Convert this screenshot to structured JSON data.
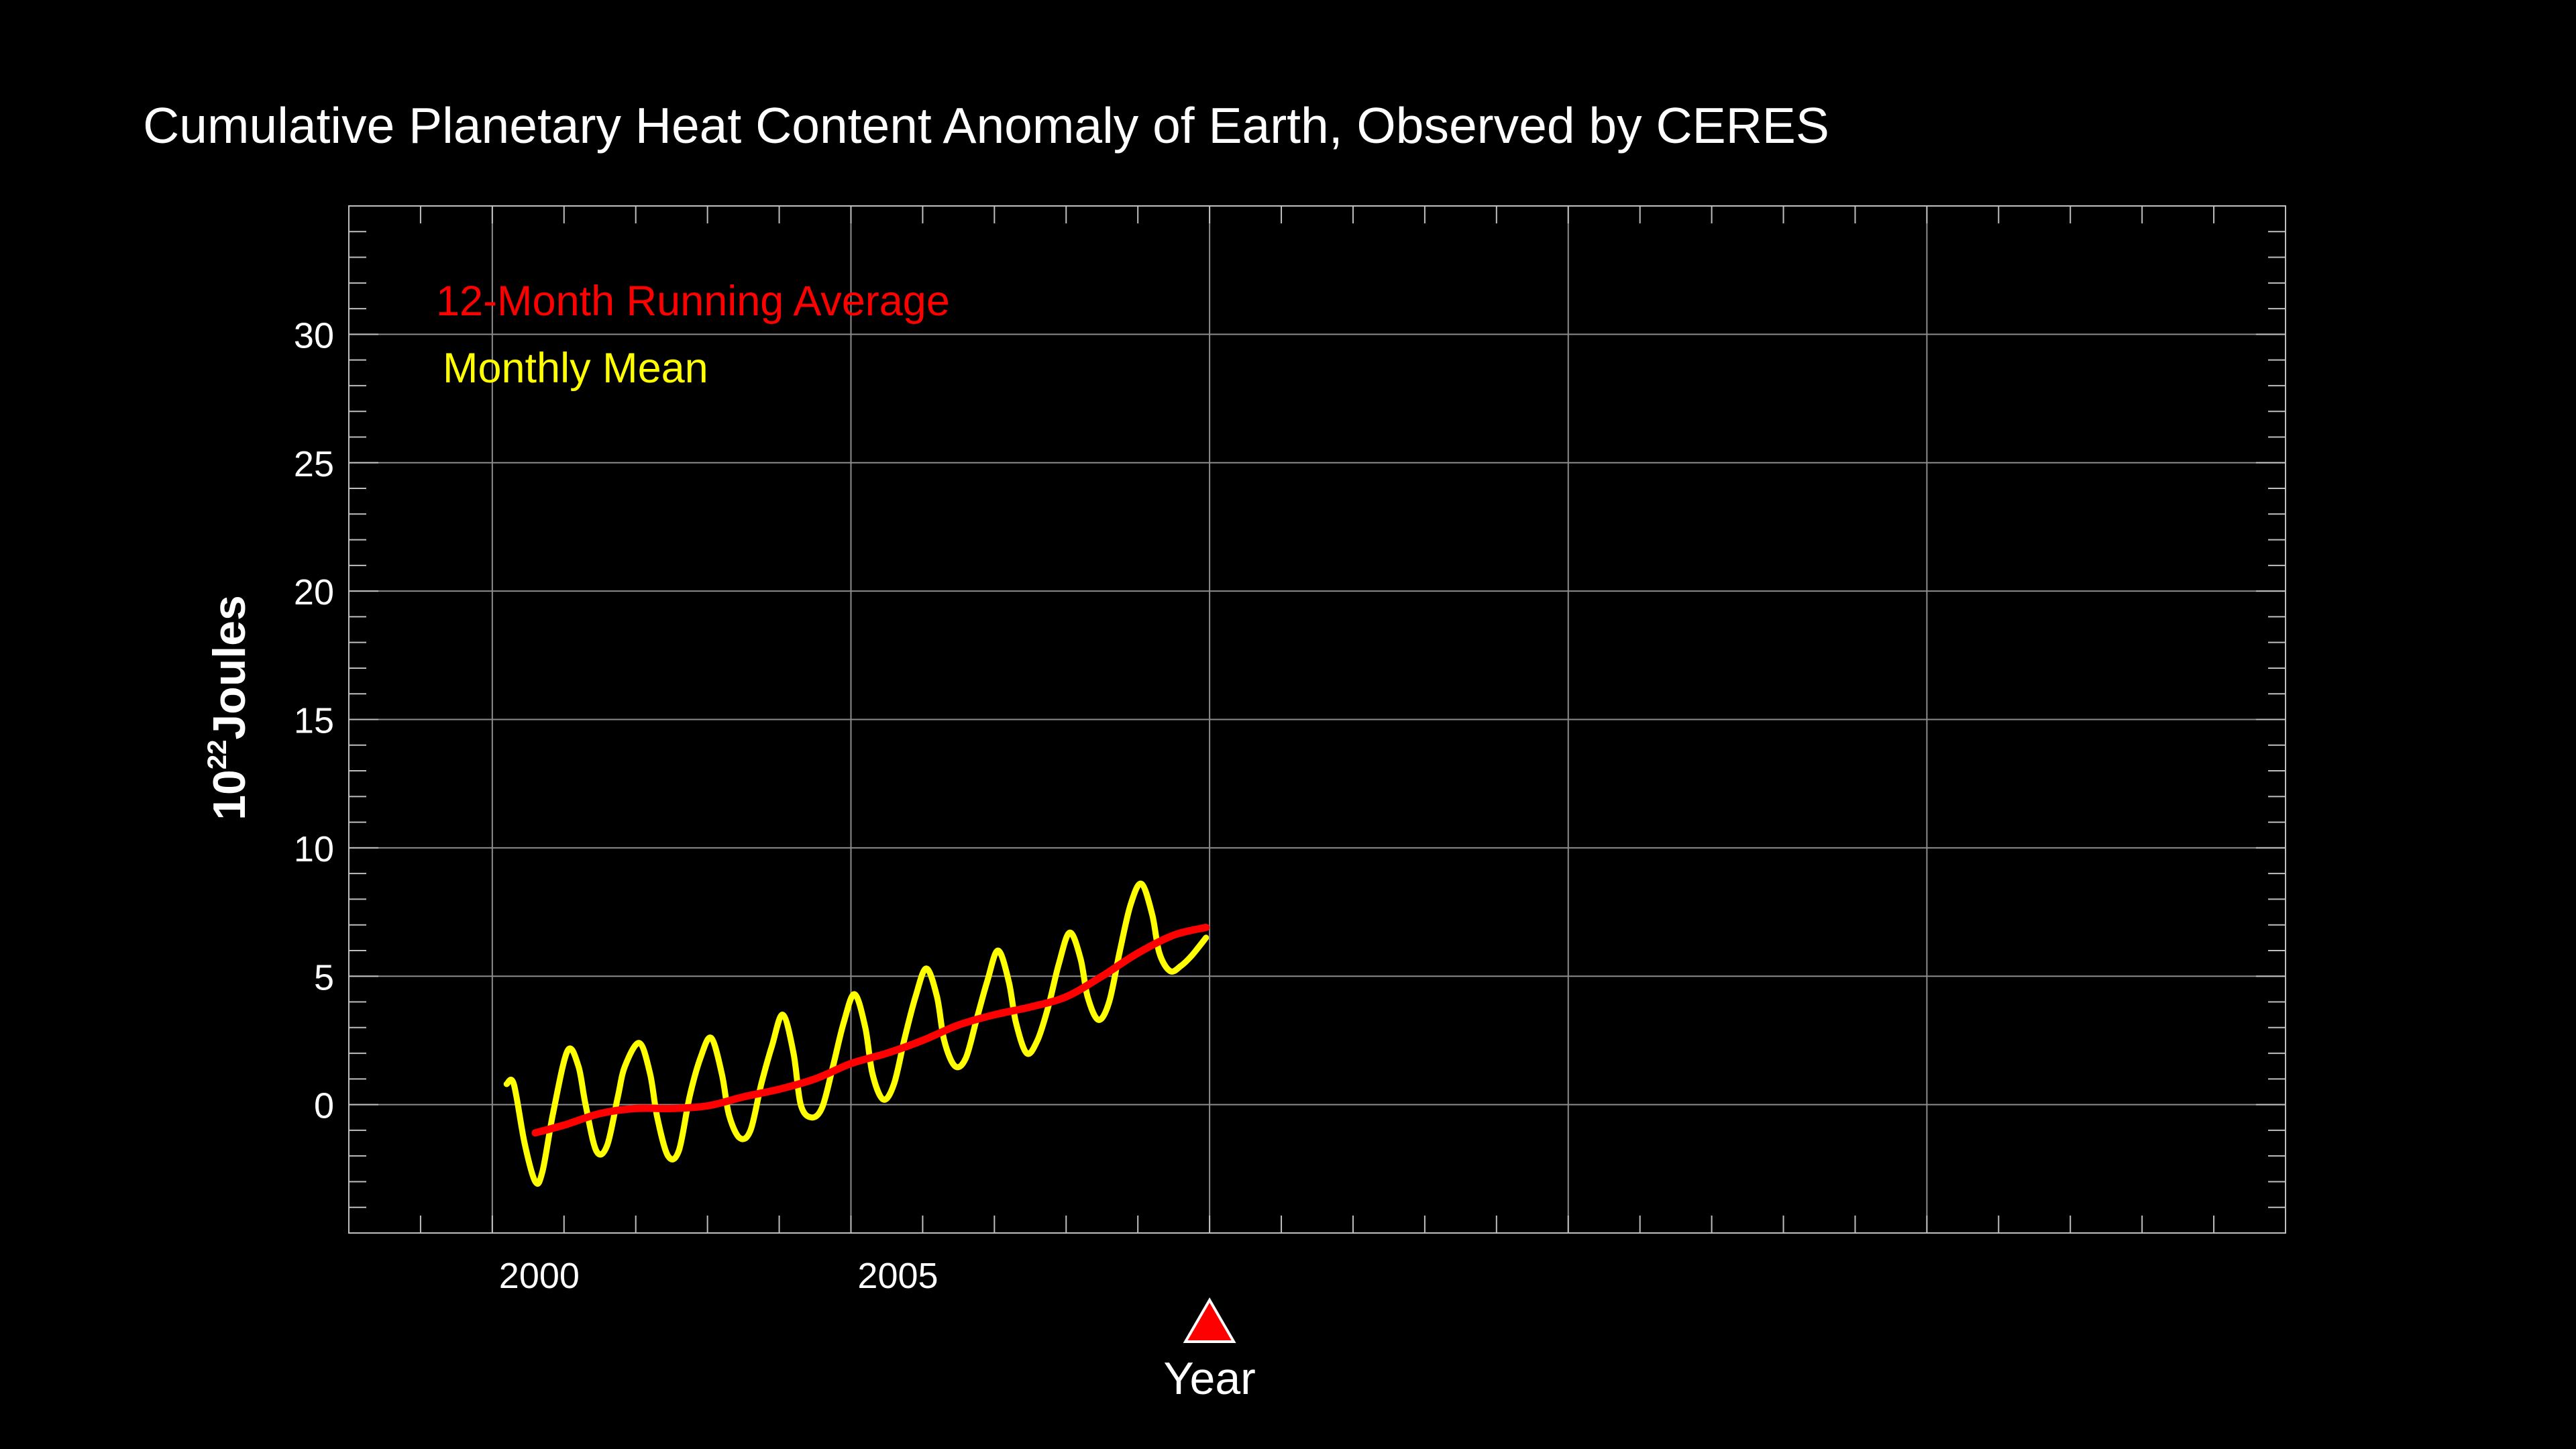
{
  "chart_data": {
    "type": "line",
    "title": "Cumulative Planetary Heat Content Anomaly of Earth, Observed by CERES",
    "xlabel": "Year",
    "ylabel": {
      "base": "10",
      "exponent": "22",
      "unit": "Joules"
    },
    "xlim": [
      1998,
      2025
    ],
    "ylim": [
      -5,
      35
    ],
    "x_ticks": [
      2000,
      2005
    ],
    "x_tick_labels": [
      "2000",
      "2005"
    ],
    "y_ticks": [
      0,
      5,
      10,
      15,
      20,
      25,
      30
    ],
    "y_tick_labels": [
      "0",
      "5",
      "10",
      "15",
      "20",
      "25",
      "30"
    ],
    "grid": true,
    "legend_placement": "top-left",
    "current_year_marker": 2010,
    "series": [
      {
        "name": "12-Month Running Average",
        "color": "#ff0000",
        "x": [
          2000.6,
          2001.0,
          2001.5,
          2002.0,
          2002.5,
          2003.0,
          2003.5,
          2004.0,
          2004.5,
          2005.0,
          2005.5,
          2006.0,
          2006.5,
          2007.0,
          2007.5,
          2008.0,
          2008.5,
          2009.0,
          2009.5,
          2009.95
        ],
        "y": [
          -1.1,
          -0.8,
          -0.35,
          -0.15,
          -0.15,
          -0.05,
          0.3,
          0.6,
          1.0,
          1.6,
          2.0,
          2.5,
          3.1,
          3.5,
          3.8,
          4.2,
          5.0,
          5.9,
          6.6,
          6.9
        ]
      },
      {
        "name": "Monthly Mean",
        "color": "#ffff00",
        "x": [
          2000.2,
          2000.3,
          2000.45,
          2000.6,
          2000.7,
          2000.85,
          2001.05,
          2001.2,
          2001.3,
          2001.45,
          2001.6,
          2001.75,
          2001.85,
          2002.05,
          2002.2,
          2002.3,
          2002.45,
          2002.6,
          2002.75,
          2002.9,
          2003.05,
          2003.2,
          2003.3,
          2003.45,
          2003.6,
          2003.75,
          2003.9,
          2004.05,
          2004.2,
          2004.3,
          2004.45,
          2004.6,
          2004.75,
          2004.9,
          2005.05,
          2005.2,
          2005.3,
          2005.45,
          2005.6,
          2005.75,
          2005.9,
          2006.05,
          2006.2,
          2006.3,
          2006.45,
          2006.6,
          2006.75,
          2006.9,
          2007.05,
          2007.2,
          2007.3,
          2007.45,
          2007.6,
          2007.75,
          2007.9,
          2008.05,
          2008.2,
          2008.3,
          2008.45,
          2008.6,
          2008.75,
          2008.9,
          2009.05,
          2009.2,
          2009.3,
          2009.45,
          2009.6,
          2009.75,
          2009.95
        ],
        "y": [
          0.8,
          0.8,
          -1.5,
          -3.0,
          -2.6,
          -0.3,
          2.1,
          1.5,
          0.0,
          -1.8,
          -1.6,
          0.3,
          1.5,
          2.4,
          1.2,
          -0.5,
          -2.0,
          -1.8,
          0.3,
          1.8,
          2.6,
          1.2,
          -0.4,
          -1.3,
          -1.0,
          0.8,
          2.3,
          3.5,
          2.0,
          0.0,
          -0.5,
          -0.1,
          1.5,
          3.2,
          4.3,
          3.0,
          1.2,
          0.2,
          0.8,
          2.6,
          4.2,
          5.3,
          4.2,
          2.5,
          1.5,
          1.8,
          3.3,
          4.8,
          6.0,
          4.8,
          3.2,
          2.0,
          2.5,
          3.8,
          5.5,
          6.7,
          5.7,
          4.2,
          3.3,
          4.0,
          6.0,
          7.8,
          8.6,
          7.4,
          5.9,
          5.2,
          5.4,
          5.8,
          6.5
        ]
      }
    ]
  }
}
